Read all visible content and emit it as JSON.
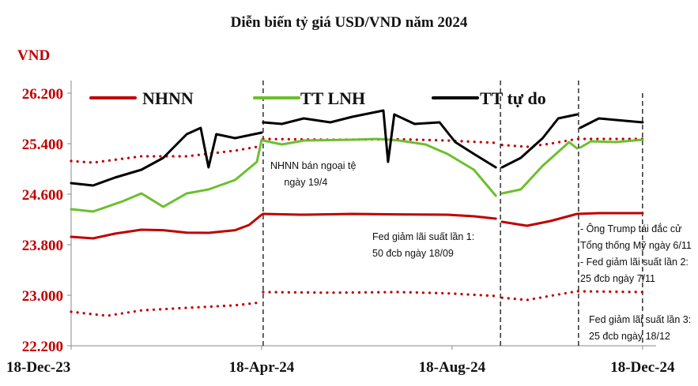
{
  "chart_data": {
    "type": "line",
    "title": "Diễn biến tỷ giá USD/VND năm 2024",
    "ylabel": "VND",
    "xlabel": "",
    "ylim": [
      22200,
      26200
    ],
    "yticks": [
      "26.200",
      "25.400",
      "24.600",
      "23.800",
      "23.000",
      "22.200"
    ],
    "ytick_values": [
      26200,
      25400,
      24600,
      23800,
      23000,
      22200
    ],
    "xlim": [
      "2023-12-18",
      "2024-12-22"
    ],
    "xticks": [
      "18-Dec-23",
      "18-Apr-24",
      "18-Aug-24",
      "18-Dec-24"
    ],
    "xtick_values": [
      "2023-12-18",
      "2024-04-18",
      "2024-08-18",
      "2024-12-18"
    ],
    "grid": false,
    "legend_position": "top",
    "series": [
      {
        "name": "NHNN",
        "color": "#c00000",
        "style": "solid",
        "points": [
          [
            "2023-12-18",
            23925
          ],
          [
            "2024-01-01",
            23900
          ],
          [
            "2024-01-15",
            23975
          ],
          [
            "2024-02-01",
            24037
          ],
          [
            "2024-02-15",
            24030
          ],
          [
            "2024-03-01",
            23990
          ],
          [
            "2024-03-15",
            23987
          ],
          [
            "2024-04-01",
            24030
          ],
          [
            "2024-04-10",
            24112
          ],
          [
            "2024-04-18",
            24275
          ],
          null,
          [
            "2024-04-19",
            24287
          ],
          [
            "2024-05-15",
            24275
          ],
          [
            "2024-06-15",
            24287
          ],
          [
            "2024-07-15",
            24280
          ],
          [
            "2024-08-15",
            24275
          ],
          [
            "2024-09-01",
            24250
          ],
          [
            "2024-09-15",
            24212
          ],
          null,
          [
            "2024-09-19",
            24162
          ],
          [
            "2024-10-05",
            24100
          ],
          [
            "2024-10-20",
            24175
          ],
          [
            "2024-11-06",
            24287
          ],
          [
            "2024-11-20",
            24300
          ],
          [
            "2024-12-18",
            24300
          ]
        ]
      },
      {
        "color": "#c00000",
        "style": "dotted",
        "points": [
          [
            "2023-12-18",
            25125
          ],
          [
            "2024-01-01",
            25100
          ],
          [
            "2024-02-01",
            25200
          ],
          [
            "2024-03-01",
            25200
          ],
          [
            "2024-04-01",
            25290
          ],
          [
            "2024-04-18",
            25362
          ],
          null,
          [
            "2024-04-19",
            25475
          ],
          [
            "2024-06-01",
            25462
          ],
          [
            "2024-07-15",
            25470
          ],
          [
            "2024-08-15",
            25450
          ],
          [
            "2024-09-15",
            25412
          ],
          null,
          [
            "2024-09-19",
            25380
          ],
          [
            "2024-10-05",
            25350
          ],
          [
            "2024-10-20",
            25400
          ],
          [
            "2024-11-06",
            25475
          ],
          [
            "2024-12-18",
            25475
          ]
        ]
      },
      {
        "color": "#c00000",
        "style": "dotted",
        "points": [
          [
            "2023-12-18",
            22737
          ],
          [
            "2024-01-10",
            22675
          ],
          [
            "2024-02-01",
            22760
          ],
          [
            "2024-03-01",
            22800
          ],
          [
            "2024-04-01",
            22840
          ],
          [
            "2024-04-18",
            22887
          ],
          null,
          [
            "2024-04-19",
            23050
          ],
          [
            "2024-06-01",
            23040
          ],
          [
            "2024-07-15",
            23050
          ],
          [
            "2024-08-15",
            23030
          ],
          [
            "2024-09-15",
            22987
          ],
          null,
          [
            "2024-09-19",
            22960
          ],
          [
            "2024-10-05",
            22925
          ],
          [
            "2024-10-20",
            22990
          ],
          [
            "2024-11-06",
            23062
          ],
          [
            "2024-12-18",
            23050
          ]
        ]
      },
      {
        "name": "TT LNH",
        "color": "#6cbf2e",
        "style": "solid",
        "points": [
          [
            "2023-12-18",
            24362
          ],
          [
            "2024-01-01",
            24325
          ],
          [
            "2024-01-20",
            24487
          ],
          [
            "2024-02-01",
            24612
          ],
          [
            "2024-02-15",
            24400
          ],
          [
            "2024-03-01",
            24612
          ],
          [
            "2024-03-15",
            24675
          ],
          [
            "2024-04-01",
            24825
          ],
          [
            "2024-04-15",
            25112
          ],
          [
            "2024-04-18",
            25462
          ],
          null,
          [
            "2024-04-19",
            25450
          ],
          [
            "2024-05-01",
            25387
          ],
          [
            "2024-05-15",
            25450
          ],
          [
            "2024-06-15",
            25462
          ],
          [
            "2024-07-01",
            25475
          ],
          [
            "2024-07-15",
            25450
          ],
          [
            "2024-08-01",
            25387
          ],
          [
            "2024-08-15",
            25237
          ],
          [
            "2024-09-01",
            24987
          ],
          [
            "2024-09-15",
            24575
          ],
          null,
          [
            "2024-09-19",
            24612
          ],
          [
            "2024-10-01",
            24675
          ],
          [
            "2024-10-15",
            25050
          ],
          [
            "2024-11-01",
            25425
          ],
          [
            "2024-11-06",
            25325
          ],
          null,
          [
            "2024-11-08",
            25337
          ],
          [
            "2024-11-15",
            25437
          ],
          [
            "2024-12-01",
            25425
          ],
          [
            "2024-12-18",
            25462
          ]
        ]
      },
      {
        "name": "TT tự do",
        "color": "#000000",
        "style": "solid",
        "points": [
          [
            "2023-12-18",
            24775
          ],
          [
            "2024-01-01",
            24737
          ],
          [
            "2024-01-15",
            24862
          ],
          [
            "2024-02-01",
            24987
          ],
          [
            "2024-02-15",
            25175
          ],
          [
            "2024-03-01",
            25550
          ],
          [
            "2024-03-10",
            25650
          ],
          [
            "2024-03-15",
            25025
          ],
          [
            "2024-03-20",
            25550
          ],
          [
            "2024-04-01",
            25487
          ],
          [
            "2024-04-18",
            25575
          ],
          null,
          [
            "2024-04-19",
            25737
          ],
          [
            "2024-05-01",
            25712
          ],
          [
            "2024-05-15",
            25800
          ],
          [
            "2024-06-01",
            25737
          ],
          [
            "2024-06-15",
            25825
          ],
          [
            "2024-07-05",
            25925
          ],
          [
            "2024-07-08",
            25112
          ],
          [
            "2024-07-12",
            25862
          ],
          [
            "2024-07-25",
            25712
          ],
          [
            "2024-08-10",
            25737
          ],
          [
            "2024-08-20",
            25425
          ],
          [
            "2024-09-01",
            25237
          ],
          [
            "2024-09-15",
            25025
          ],
          null,
          [
            "2024-09-19",
            25025
          ],
          [
            "2024-10-01",
            25175
          ],
          [
            "2024-10-15",
            25487
          ],
          [
            "2024-10-25",
            25800
          ],
          [
            "2024-11-06",
            25862
          ],
          null,
          [
            "2024-11-08",
            25650
          ],
          [
            "2024-11-20",
            25800
          ],
          [
            "2024-12-01",
            25775
          ],
          [
            "2024-12-18",
            25737
          ]
        ]
      }
    ],
    "event_dates": [
      "2024-04-19",
      "2024-09-18",
      "2024-11-07",
      "2024-12-18"
    ],
    "annotations": [
      "NHNN bán ngoại tệ\n     ngày 19/4",
      "Fed giảm lãi suất lần 1:\n50 đcb ngày 18/09",
      "- Ông Trump tái đắc cử\nTổng thống Mỹ ngày 6/11\n- Fed giảm lãi suất lần 2:\n25 đcb ngày 7/11",
      "Fed giảm lãi suất lần 3:\n25 đcb ngày 18/12"
    ]
  }
}
